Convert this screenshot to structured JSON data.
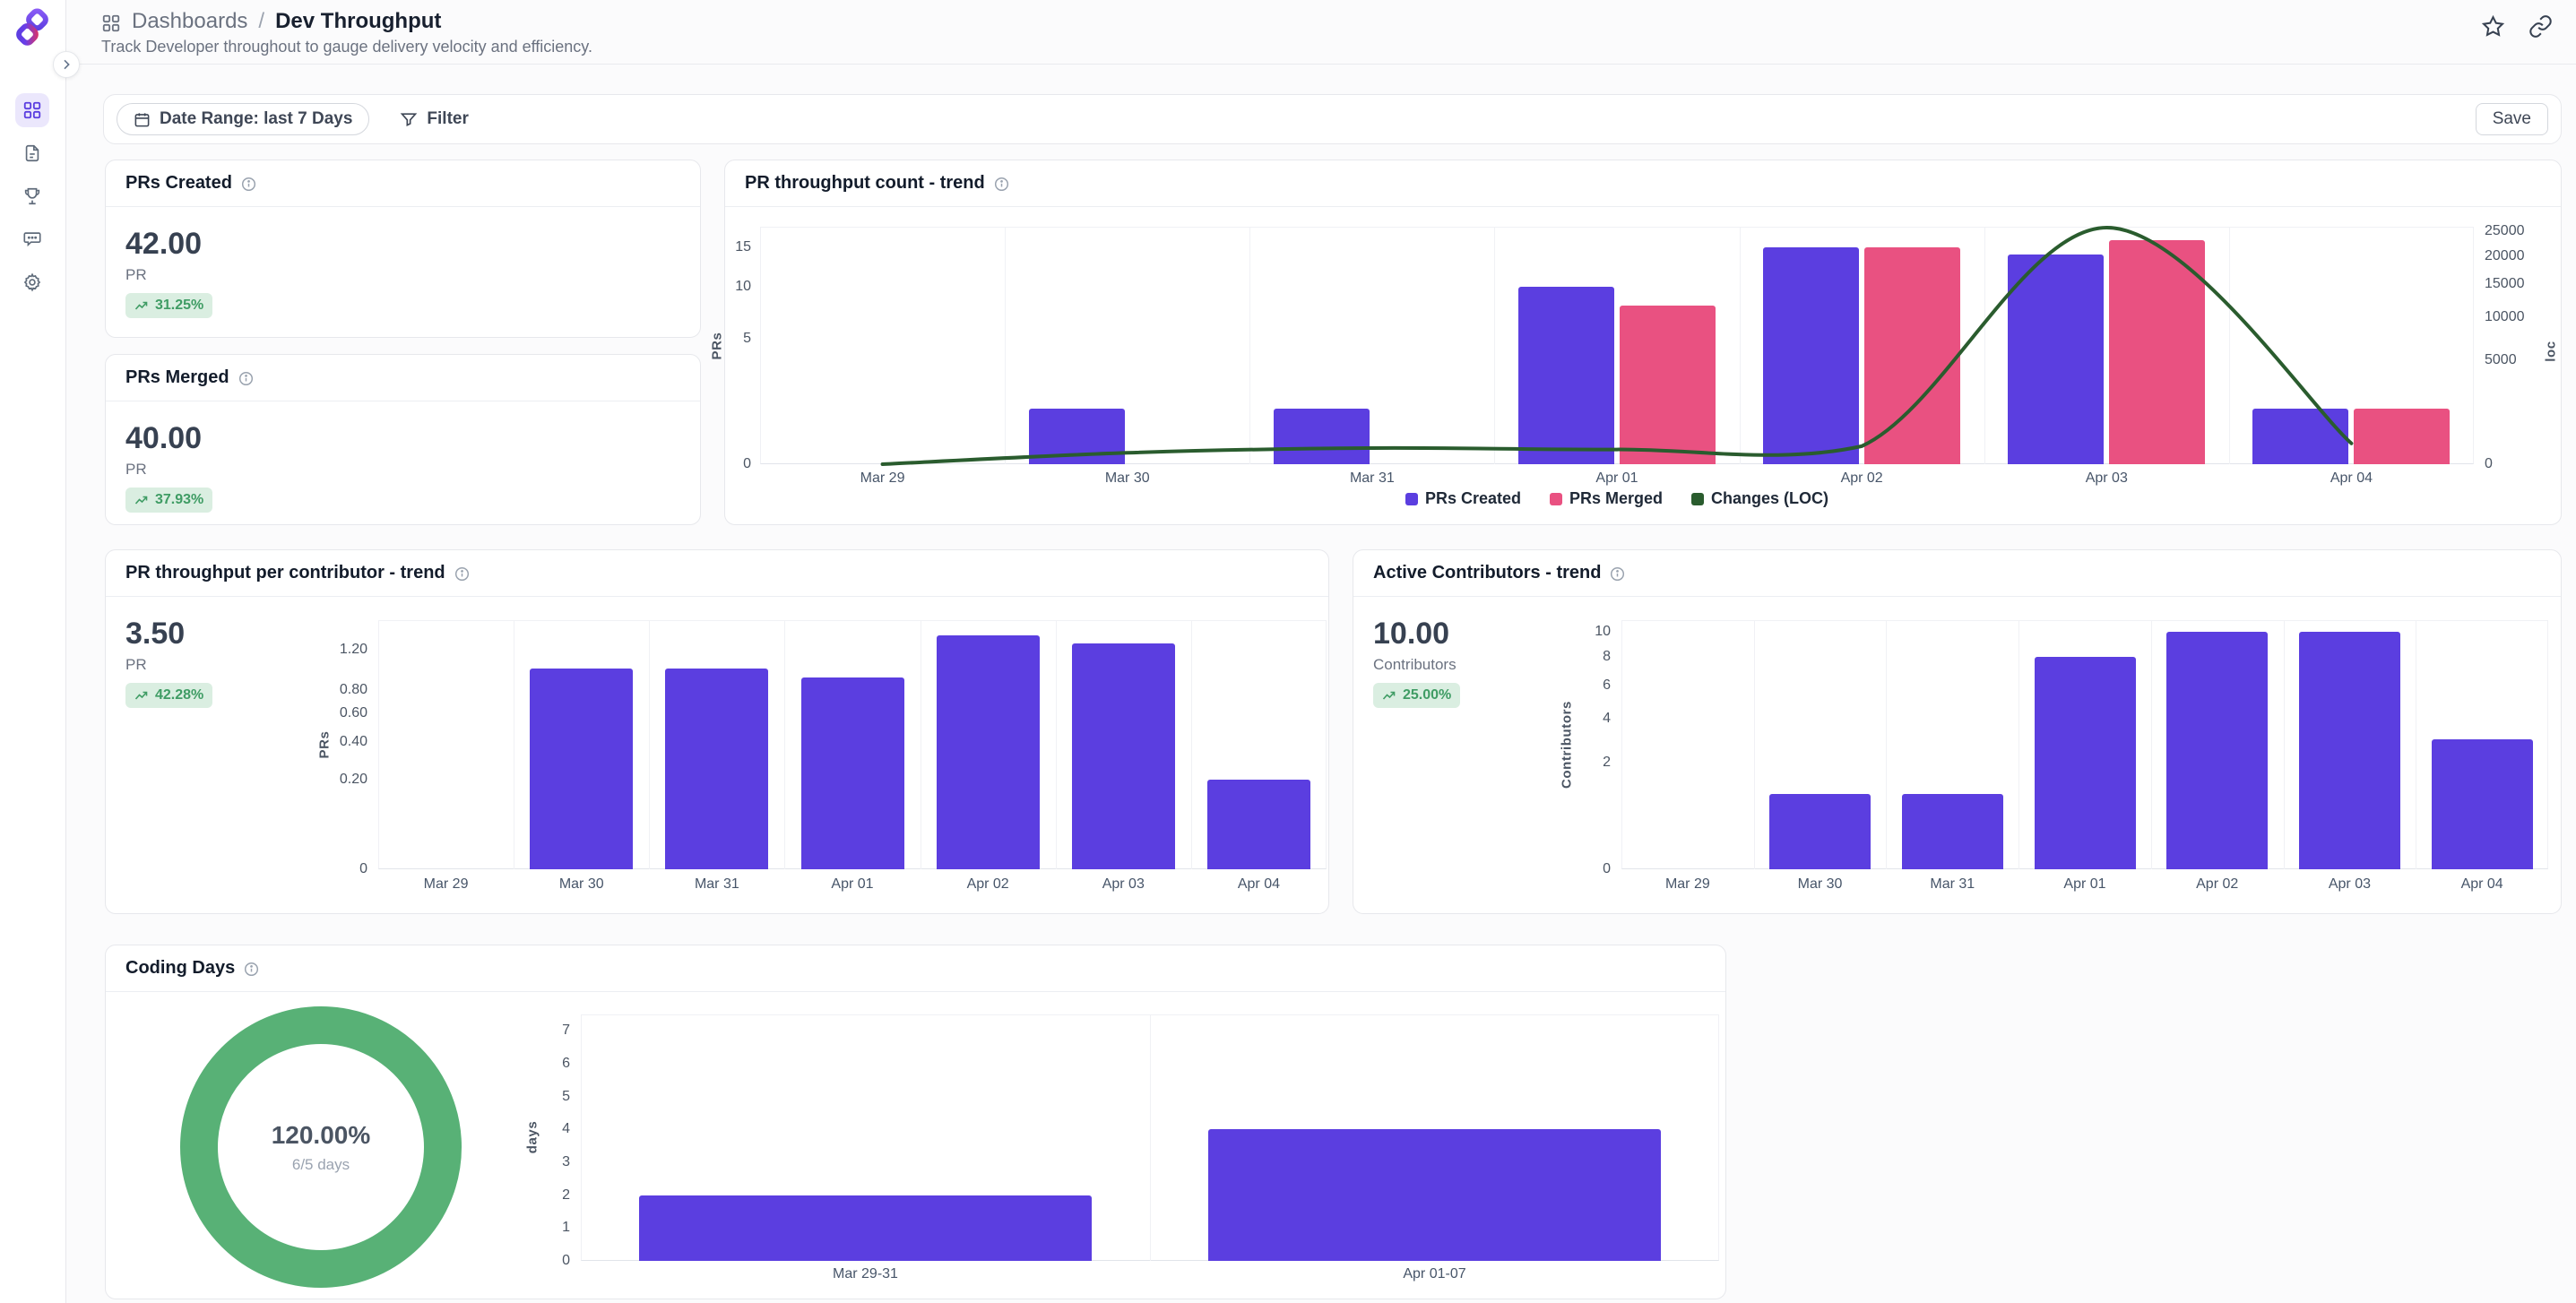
{
  "header": {
    "breadcrumb": {
      "section": "Dashboards",
      "separator": "/",
      "page": "Dev Throughput"
    },
    "subtitle": "Track Developer throughout to gauge delivery velocity and efficiency."
  },
  "sidebar": {
    "items": [
      {
        "id": "dashboards",
        "icon": "grid-icon",
        "active": true
      },
      {
        "id": "reports",
        "icon": "document-icon",
        "active": false
      },
      {
        "id": "achievements",
        "icon": "trophy-icon",
        "active": false
      },
      {
        "id": "feedback",
        "icon": "chat-icon",
        "active": false
      },
      {
        "id": "settings",
        "icon": "gear-icon",
        "active": false
      }
    ]
  },
  "toolbar": {
    "date_range": "Date Range: last 7 Days",
    "filter": "Filter",
    "save": "Save"
  },
  "metric_cards": [
    {
      "title": "PRs Created",
      "value": "42.00",
      "unit": "PR",
      "change": "31.25%",
      "trend": "up"
    },
    {
      "title": "PRs Merged",
      "value": "40.00",
      "unit": "PR",
      "change": "37.93%",
      "trend": "up"
    }
  ],
  "charts": {
    "throughput_count": {
      "title": "PR throughput count - trend"
    },
    "per_contributor": {
      "title": "PR throughput per contributor - trend",
      "value": "3.50",
      "unit": "PR",
      "change": "42.28%"
    },
    "active_contributors": {
      "title": "Active Contributors - trend",
      "value": "10.00",
      "unit": "Contributors",
      "change": "25.00%"
    },
    "coding_days": {
      "title": "Coding Days",
      "donut_value": "120.00%",
      "donut_caption": "6/5 days"
    }
  },
  "colors": {
    "accent_purple": "#5b3ee0",
    "pink": "#e95181",
    "line_green": "#2a5c2e",
    "donut_green": "#58b176",
    "badge_bg": "#daeee1",
    "badge_text": "#3f9c64"
  },
  "chart_data": [
    {
      "id": "throughput_count",
      "type": "bar",
      "title": "PR throughput count - trend",
      "categories": [
        "Mar 29",
        "Mar 30",
        "Mar 31",
        "Apr 01",
        "Apr 02",
        "Apr 03",
        "Apr 04"
      ],
      "series": [
        {
          "name": "PRs Created",
          "type": "bar",
          "axis": "left",
          "color": "#5b3ee0",
          "values": [
            0,
            1,
            1,
            10,
            15,
            14,
            1
          ]
        },
        {
          "name": "PRs Merged",
          "type": "bar",
          "axis": "left",
          "color": "#e95181",
          "values": [
            0,
            0,
            0,
            8,
            15,
            16,
            1
          ]
        },
        {
          "name": "Changes (LOC)",
          "type": "line",
          "axis": "right",
          "color": "#2a5c2e",
          "values": [
            0,
            60,
            120,
            100,
            150,
            25800,
            200
          ]
        }
      ],
      "left_axis": {
        "label": "PRs",
        "scale": "sqrt",
        "max": 18,
        "ticks": [
          {
            "v": 0,
            "label": "0"
          },
          {
            "v": 5,
            "label": "5"
          },
          {
            "v": 10,
            "label": "10"
          },
          {
            "v": 15,
            "label": "15"
          }
        ]
      },
      "right_axis": {
        "label": "loc",
        "scale": "sqrt",
        "max": 26000,
        "ticks": [
          {
            "v": 0,
            "label": "0"
          },
          {
            "v": 5000,
            "label": "5000"
          },
          {
            "v": 10000,
            "label": "10000"
          },
          {
            "v": 15000,
            "label": "15000"
          },
          {
            "v": 20000,
            "label": "20000"
          },
          {
            "v": 25000,
            "label": "25000"
          }
        ]
      },
      "legend_position": "bottom",
      "grid": "vertical-only"
    },
    {
      "id": "per_contributor",
      "type": "bar",
      "title": "PR throughput per contributor - trend",
      "categories": [
        "Mar 29",
        "Mar 30",
        "Mar 31",
        "Apr 01",
        "Apr 02",
        "Apr 03",
        "Apr 04"
      ],
      "series": [
        {
          "name": "PRs per contributor",
          "type": "bar",
          "axis": "left",
          "color": "#5b3ee0",
          "values": [
            0,
            1.0,
            1.0,
            0.91,
            1.36,
            1.27,
            0.2
          ]
        }
      ],
      "left_axis": {
        "label": "PRs",
        "scale": "sqrt",
        "max": 1.54,
        "ticks": [
          {
            "v": 0,
            "label": "0"
          },
          {
            "v": 0.2,
            "label": "0.20"
          },
          {
            "v": 0.4,
            "label": "0.40"
          },
          {
            "v": 0.6,
            "label": "0.60"
          },
          {
            "v": 0.8,
            "label": "0.80"
          },
          {
            "v": 1.2,
            "label": "1.20"
          }
        ]
      },
      "legend_position": "none",
      "grid": "vertical-only"
    },
    {
      "id": "active_contributors",
      "type": "bar",
      "title": "Active Contributors - trend",
      "categories": [
        "Mar 29",
        "Mar 30",
        "Mar 31",
        "Apr 01",
        "Apr 02",
        "Apr 03",
        "Apr 04"
      ],
      "series": [
        {
          "name": "Contributors",
          "type": "bar",
          "axis": "left",
          "color": "#5b3ee0",
          "values": [
            0,
            1,
            1,
            8,
            10,
            10,
            3
          ]
        }
      ],
      "left_axis": {
        "label": "Contributors",
        "scale": "sqrt",
        "max": 11,
        "ticks": [
          {
            "v": 0,
            "label": "0"
          },
          {
            "v": 2,
            "label": "2"
          },
          {
            "v": 4,
            "label": "4"
          },
          {
            "v": 6,
            "label": "6"
          },
          {
            "v": 8,
            "label": "8"
          },
          {
            "v": 10,
            "label": "10"
          }
        ]
      },
      "legend_position": "none",
      "grid": "vertical-only"
    },
    {
      "id": "coding_days",
      "type": "bar",
      "title": "Coding Days",
      "categories": [
        "Mar 29-31",
        "Apr 01-07"
      ],
      "series": [
        {
          "name": "days",
          "type": "bar",
          "axis": "left",
          "color": "#5b3ee0",
          "values": [
            2,
            4
          ]
        }
      ],
      "left_axis": {
        "label": "days",
        "scale": "linear",
        "max": 7.5,
        "ticks": [
          {
            "v": 0,
            "label": "0"
          },
          {
            "v": 1,
            "label": "1"
          },
          {
            "v": 2,
            "label": "2"
          },
          {
            "v": 3,
            "label": "3"
          },
          {
            "v": 4,
            "label": "4"
          },
          {
            "v": 5,
            "label": "5"
          },
          {
            "v": 6,
            "label": "6"
          },
          {
            "v": 7,
            "label": "7"
          }
        ]
      },
      "legend_position": "none",
      "grid": "vertical-only",
      "donut": {
        "value_label": "120.00%",
        "caption": "6/5 days",
        "percent": 120,
        "color": "#58b176"
      }
    }
  ]
}
